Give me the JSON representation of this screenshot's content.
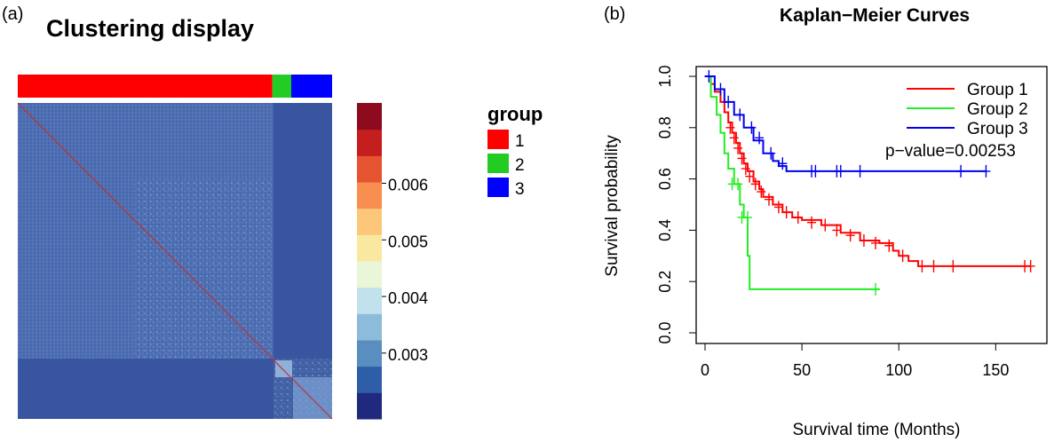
{
  "panel_a": {
    "label": "(a)",
    "title": "Clustering display",
    "colorbar_ticks": [
      "0.003",
      "0.004",
      "0.005",
      "0.006"
    ],
    "colorbar_colors": [
      "#1f2a7e",
      "#2f5ea8",
      "#5a8ec0",
      "#8cbcda",
      "#c1e2ec",
      "#eaf6d8",
      "#fbe8a0",
      "#fcc77a",
      "#f88f50",
      "#e55330",
      "#c41e1e",
      "#8d0a1f"
    ],
    "group_legend": {
      "title": "group",
      "items": [
        {
          "label": "1",
          "color": "#ff0000"
        },
        {
          "label": "2",
          "color": "#22cc22"
        },
        {
          "label": "3",
          "color": "#0000ff"
        }
      ]
    },
    "group_bar": [
      {
        "group": "1",
        "fraction": 0.81,
        "color": "#ff0000"
      },
      {
        "group": "2",
        "fraction": 0.06,
        "color": "#22cc22"
      },
      {
        "group": "3",
        "fraction": 0.13,
        "color": "#0000ff"
      }
    ]
  },
  "panel_b": {
    "label": "(b)",
    "p_value_text": "p−value=0.00253",
    "chart_data": {
      "type": "line",
      "title": "Kaplan−Meier Curves",
      "xlabel": "Survival time (Months)",
      "ylabel": "Survival probability",
      "xlim": [
        0,
        170
      ],
      "ylim": [
        0,
        1
      ],
      "xticks": [
        "0",
        "50",
        "100",
        "150"
      ],
      "yticks": [
        "0.0",
        "0.2",
        "0.4",
        "0.6",
        "0.8",
        "1.0"
      ],
      "legend_position": "top-right",
      "series": [
        {
          "name": "Group 1",
          "color": "#ff0000",
          "x": [
            0,
            3,
            5,
            8,
            10,
            12,
            14,
            16,
            18,
            20,
            22,
            25,
            28,
            30,
            35,
            40,
            45,
            50,
            60,
            70,
            80,
            90,
            97,
            100,
            105,
            110,
            168
          ],
          "y": [
            1.0,
            0.97,
            0.94,
            0.9,
            0.86,
            0.82,
            0.78,
            0.74,
            0.7,
            0.66,
            0.63,
            0.59,
            0.56,
            0.53,
            0.5,
            0.47,
            0.45,
            0.44,
            0.42,
            0.39,
            0.36,
            0.35,
            0.32,
            0.3,
            0.28,
            0.26,
            0.26
          ],
          "censor_x": [
            13,
            15,
            17,
            19,
            21,
            23,
            26,
            29,
            33,
            38,
            42,
            48,
            55,
            62,
            68,
            75,
            82,
            88,
            95,
            102,
            112,
            118,
            128,
            165,
            168
          ],
          "censor_y": [
            0.8,
            0.76,
            0.72,
            0.68,
            0.64,
            0.61,
            0.58,
            0.55,
            0.52,
            0.49,
            0.47,
            0.45,
            0.43,
            0.42,
            0.4,
            0.38,
            0.36,
            0.35,
            0.34,
            0.3,
            0.26,
            0.26,
            0.26,
            0.26,
            0.26
          ]
        },
        {
          "name": "Group 2",
          "color": "#22ee22",
          "x": [
            0,
            3,
            6,
            8,
            10,
            12,
            15,
            18,
            20,
            22,
            23,
            90
          ],
          "y": [
            1.0,
            0.92,
            0.85,
            0.78,
            0.7,
            0.64,
            0.58,
            0.5,
            0.45,
            0.3,
            0.17,
            0.17
          ],
          "censor_x": [
            14,
            17,
            19,
            22,
            88
          ],
          "censor_y": [
            0.58,
            0.58,
            0.45,
            0.45,
            0.17
          ]
        },
        {
          "name": "Group 3",
          "color": "#0000ee",
          "x": [
            0,
            5,
            10,
            15,
            20,
            25,
            30,
            35,
            38,
            42,
            145
          ],
          "y": [
            1.0,
            0.95,
            0.9,
            0.85,
            0.8,
            0.75,
            0.7,
            0.67,
            0.65,
            0.63,
            0.63
          ],
          "censor_x": [
            2,
            8,
            12,
            18,
            24,
            28,
            34,
            40,
            55,
            57,
            68,
            70,
            80,
            132,
            145
          ],
          "censor_y": [
            1.0,
            0.95,
            0.9,
            0.85,
            0.8,
            0.76,
            0.7,
            0.66,
            0.63,
            0.63,
            0.63,
            0.63,
            0.63,
            0.63,
            0.63
          ]
        }
      ]
    }
  }
}
